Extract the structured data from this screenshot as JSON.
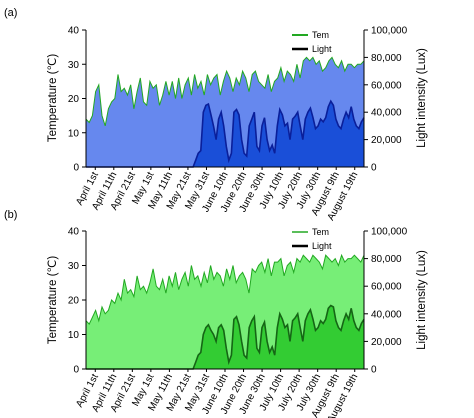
{
  "chart_data": [
    {
      "panel_label": "(a)",
      "type": "area",
      "xlabel": "",
      "ylabel_left": "Temperature (℃)",
      "ylabel_right": "Light intensity (Lux)",
      "ylim_left": [
        0,
        40
      ],
      "ylim_right": [
        0,
        100000
      ],
      "yticks_left": [
        "0",
        "10",
        "20",
        "30",
        "40"
      ],
      "yticks_right": [
        "0",
        "20,000",
        "40,000",
        "60,000",
        "80,000",
        "100,000"
      ],
      "x_ticks": [
        "April 1st",
        "April 11th",
        "April 21st",
        "May 1st",
        "May 11th",
        "May 21st",
        "May 31st",
        "June 10th",
        "June 20th",
        "June 30th",
        "July 10th",
        "July 20th",
        "July 30th",
        "August 9th",
        "August 19th"
      ],
      "legend_position": "top-right",
      "series": [
        {
          "name": "Tem",
          "axis": "left",
          "color": "#22a822",
          "fill": "#6688ee",
          "values": [
            14,
            13,
            15,
            22,
            24,
            15,
            12,
            17,
            19,
            20,
            27,
            22,
            23,
            21,
            24,
            17,
            22,
            26,
            19,
            18,
            25,
            23,
            24,
            18,
            21,
            25,
            21,
            25,
            20,
            26,
            20,
            24,
            26,
            21,
            27,
            23,
            25,
            21,
            27,
            24,
            26,
            27,
            21,
            25,
            28,
            26,
            22,
            26,
            24,
            28,
            26,
            22,
            27,
            28,
            25,
            24,
            23,
            27,
            22,
            25,
            26,
            29,
            25,
            28,
            27,
            25,
            30,
            26,
            31,
            32,
            31,
            32,
            30,
            31,
            28,
            29,
            31,
            32,
            30,
            29,
            31,
            28,
            30,
            30,
            29,
            30,
            30,
            31
          ]
        },
        {
          "name": "Light",
          "axis": "right",
          "color": "#0a1f9a",
          "fill": "#1a4fd8",
          "values": [
            0,
            0,
            0,
            0,
            0,
            0,
            0,
            0,
            0,
            0,
            0,
            0,
            0,
            0,
            0,
            0,
            0,
            0,
            0,
            0,
            0,
            0,
            0,
            0,
            0,
            0,
            0,
            0,
            0,
            0,
            0,
            0,
            0,
            0,
            0,
            0,
            0,
            0,
            0,
            0,
            0,
            0,
            0,
            5000,
            10000,
            12000,
            40000,
            45000,
            46000,
            38000,
            30000,
            20000,
            35000,
            40000,
            30000,
            15000,
            5000,
            10000,
            40000,
            42000,
            38000,
            20000,
            10000,
            8000,
            30000,
            35000,
            40000,
            15000,
            12000,
            30000,
            36000,
            20000,
            12000,
            16000,
            10000,
            30000,
            42000,
            38000,
            30000,
            32000,
            20000,
            35000,
            37000,
            40000,
            30000,
            20000,
            35000,
            40000,
            43000,
            36000,
            28000,
            30000,
            35000,
            33000,
            36000,
            44000,
            48000,
            45000,
            35000,
            30000,
            28000,
            35000,
            40000,
            36000,
            44000,
            35000,
            30000,
            28000,
            33000,
            36000
          ]
        }
      ]
    },
    {
      "panel_label": "(b)",
      "type": "area",
      "xlabel": "",
      "ylabel_left": "Temperature (℃)",
      "ylabel_right": "Light intensity (Lux)",
      "ylim_left": [
        0,
        40
      ],
      "ylim_right": [
        0,
        100000
      ],
      "yticks_left": [
        "0",
        "10",
        "20",
        "30",
        "40"
      ],
      "yticks_right": [
        "0",
        "20,000",
        "40,000",
        "60,000",
        "80,000",
        "100,000"
      ],
      "x_ticks": [
        "April 1st",
        "April 11th",
        "April 21st",
        "May 1st",
        "May 11th",
        "May 21st",
        "May 31st",
        "June 10th",
        "June 20th",
        "June 30th",
        "July 10th",
        "July 20th",
        "July 30th",
        "August 9th",
        "August 19th"
      ],
      "legend_position": "top-right",
      "series": [
        {
          "name": "Tem",
          "axis": "left",
          "color": "#22a822",
          "fill": "#77ee77",
          "values": [
            14,
            13,
            15,
            17,
            14,
            18,
            16,
            17,
            20,
            19,
            22,
            20,
            26,
            22,
            23,
            21,
            27,
            23,
            24,
            22,
            25,
            29,
            24,
            23,
            26,
            22,
            27,
            24,
            28,
            23,
            26,
            28,
            24,
            30,
            26,
            27,
            24,
            28,
            25,
            30,
            26,
            28,
            27,
            24,
            29,
            26,
            30,
            25,
            27,
            28,
            26,
            22,
            29,
            28,
            30,
            31,
            28,
            32,
            27,
            31,
            31,
            32,
            27,
            30,
            31,
            28,
            32,
            31,
            33,
            32,
            31,
            33,
            32,
            31,
            29,
            33,
            32,
            31,
            32,
            30,
            33,
            31,
            32,
            32,
            33,
            32,
            31,
            33
          ]
        },
        {
          "name": "Light",
          "axis": "right",
          "color": "#156615",
          "fill": "#33cc33",
          "values": [
            0,
            0,
            0,
            0,
            0,
            0,
            0,
            0,
            0,
            0,
            0,
            0,
            0,
            0,
            0,
            0,
            0,
            0,
            0,
            0,
            0,
            0,
            0,
            0,
            0,
            0,
            0,
            0,
            0,
            0,
            0,
            0,
            0,
            0,
            0,
            0,
            0,
            0,
            0,
            0,
            0,
            0,
            0,
            5000,
            10000,
            12000,
            25000,
            30000,
            32000,
            28000,
            25000,
            20000,
            30000,
            32000,
            28000,
            15000,
            5000,
            10000,
            36000,
            38000,
            32000,
            20000,
            10000,
            8000,
            30000,
            35000,
            38000,
            15000,
            12000,
            30000,
            34000,
            20000,
            12000,
            16000,
            10000,
            30000,
            40000,
            36000,
            30000,
            32000,
            20000,
            35000,
            37000,
            40000,
            30000,
            20000,
            35000,
            40000,
            43000,
            36000,
            28000,
            30000,
            35000,
            33000,
            36000,
            44000,
            46000,
            45000,
            35000,
            30000,
            28000,
            35000,
            40000,
            36000,
            44000,
            35000,
            30000,
            28000,
            33000,
            36000
          ]
        }
      ]
    }
  ]
}
